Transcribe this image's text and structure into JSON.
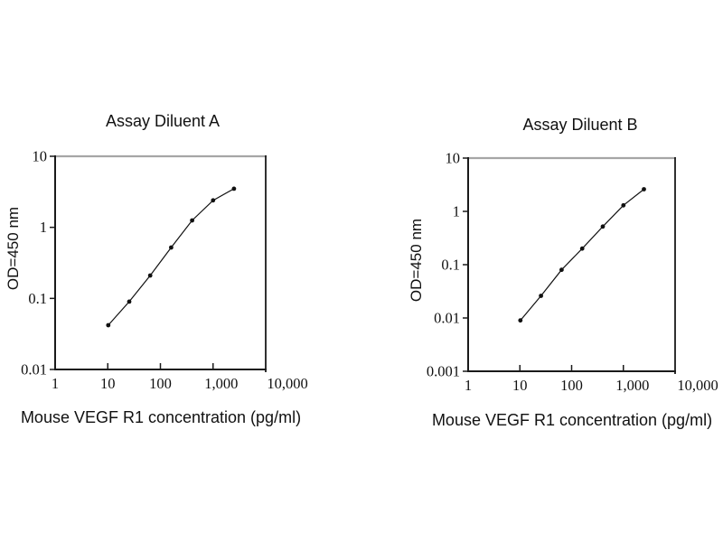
{
  "figure": {
    "background": "#ffffff",
    "text_color": "#111111",
    "axis_color": "#1a1a1a",
    "frame_top_color": "#a6a6a6",
    "marker": "filled-circle",
    "marker_color": "#111111",
    "line_color": "#111111"
  },
  "chart_data": [
    {
      "type": "line",
      "title": "Assay Diluent A",
      "xlabel": "Mouse VEGF R1 concentration (pg/ml)",
      "ylabel": "OD=450 nm",
      "x_scale": "log",
      "y_scale": "log",
      "xlim": [
        1,
        10000
      ],
      "ylim": [
        0.01,
        10
      ],
      "x_tick_labels": [
        "1",
        "10",
        "100",
        "1,000",
        "10,000"
      ],
      "y_tick_labels": [
        "0.01",
        "0.1",
        "1",
        "10"
      ],
      "x": [
        10.24,
        25.6,
        64,
        160,
        400,
        1000,
        2500
      ],
      "y": [
        0.042,
        0.09,
        0.21,
        0.52,
        1.25,
        2.4,
        3.5
      ],
      "grid": false,
      "legend": null
    },
    {
      "type": "line",
      "title": "Assay Diluent B",
      "xlabel": "Mouse VEGF R1 concentration (pg/ml)",
      "ylabel": "OD=450 nm",
      "x_scale": "log",
      "y_scale": "log",
      "xlim": [
        1,
        10000
      ],
      "ylim": [
        0.001,
        10
      ],
      "x_tick_labels": [
        "1",
        "10",
        "100",
        "1,000",
        "10,000"
      ],
      "y_tick_labels": [
        "0.001",
        "0.01",
        "0.1",
        "1",
        "10"
      ],
      "x": [
        10.24,
        25.6,
        64,
        160,
        400,
        1000,
        2500
      ],
      "y": [
        0.009,
        0.026,
        0.08,
        0.2,
        0.52,
        1.3,
        2.6
      ],
      "grid": false,
      "legend": null
    }
  ]
}
